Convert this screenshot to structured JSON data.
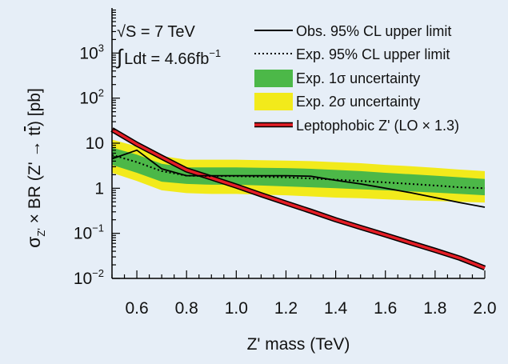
{
  "chart_data": {
    "type": "line",
    "title": "",
    "xlabel": "Z' mass (TeV)",
    "ylabel": {
      "sigma": "σ",
      "sub": "Z'",
      "rest": " × BR (Z' → t",
      "tbar": "t",
      "unit": ") [pb]"
    },
    "xlim": [
      0.5,
      2.0
    ],
    "ylim": [
      0.01,
      10000
    ],
    "yscale": "log",
    "xticks": [
      {
        "value": 0.6,
        "label": "0.6"
      },
      {
        "value": 0.8,
        "label": "0.8"
      },
      {
        "value": 1.0,
        "label": "1.0"
      },
      {
        "value": 1.2,
        "label": "1.2"
      },
      {
        "value": 1.4,
        "label": "1.4"
      },
      {
        "value": 1.6,
        "label": "1.6"
      },
      {
        "value": 1.8,
        "label": "1.8"
      },
      {
        "value": 2.0,
        "label": "2.0"
      }
    ],
    "yticks": [
      {
        "value": 0.01,
        "base": "10",
        "exp": "−2"
      },
      {
        "value": 0.1,
        "base": "10",
        "exp": "−1"
      },
      {
        "value": 1,
        "base": "1",
        "exp": ""
      },
      {
        "value": 10,
        "base": "10",
        "exp": ""
      },
      {
        "value": 100,
        "base": "10",
        "exp": "2"
      },
      {
        "value": 1000,
        "base": "10",
        "exp": "3"
      }
    ],
    "annotations": {
      "energy": "√S = 7 TeV",
      "lumi_integral": "∫",
      "lumi_text": "Ldt = 4.66fb",
      "lumi_exp": "−1"
    },
    "legend": {
      "position": "top-right",
      "entries": [
        {
          "label": "Obs. 95% CL upper limit",
          "style": "solid"
        },
        {
          "label": "Exp. 95% CL upper limit",
          "style": "dotted"
        },
        {
          "label": "Exp. 1σ uncertainty",
          "style": "band-green"
        },
        {
          "label": "Exp. 2σ uncertainty",
          "style": "band-yellow"
        },
        {
          "label": "Leptophobic Z' (LO × 1.3)",
          "style": "red"
        }
      ]
    },
    "colors": {
      "background": "#e6eef7",
      "band_1sigma": "#4cb848",
      "band_2sigma": "#f2ea1b",
      "theory": "#e41e26",
      "line": "#000000"
    },
    "x": [
      0.5,
      0.6,
      0.7,
      0.8,
      0.9,
      1.0,
      1.1,
      1.2,
      1.3,
      1.4,
      1.5,
      1.6,
      1.7,
      1.8,
      1.9,
      2.0
    ],
    "series": [
      {
        "name": "Obs. 95% CL upper limit",
        "values": [
          4.5,
          7,
          2.7,
          1.9,
          1.9,
          1.9,
          1.9,
          1.9,
          1.85,
          1.5,
          1.25,
          1.0,
          0.8,
          0.62,
          0.48,
          0.38
        ]
      },
      {
        "name": "Exp. 95% CL upper limit",
        "values": [
          5.5,
          3.8,
          2.4,
          1.9,
          1.85,
          1.85,
          1.8,
          1.75,
          1.65,
          1.55,
          1.45,
          1.35,
          1.25,
          1.15,
          1.05,
          1.0
        ]
      },
      {
        "name": "Exp. 1σ lower",
        "values": [
          3.3,
          2.2,
          1.4,
          1.25,
          1.2,
          1.2,
          1.15,
          1.1,
          1.05,
          1.0,
          0.95,
          0.9,
          0.85,
          0.8,
          0.75,
          0.7
        ]
      },
      {
        "name": "Exp. 1σ upper",
        "values": [
          8,
          5.6,
          3.5,
          2.9,
          2.9,
          2.9,
          2.85,
          2.8,
          2.7,
          2.55,
          2.4,
          2.2,
          2.05,
          1.9,
          1.75,
          1.6
        ]
      },
      {
        "name": "Exp. 2σ lower",
        "values": [
          2.2,
          1.45,
          0.9,
          0.78,
          0.75,
          0.75,
          0.72,
          0.7,
          0.66,
          0.62,
          0.6,
          0.57,
          0.54,
          0.52,
          0.5,
          0.48
        ]
      },
      {
        "name": "Exp. 2σ upper",
        "values": [
          12,
          8.5,
          5.2,
          4.3,
          4.3,
          4.3,
          4.2,
          4.1,
          4.0,
          3.8,
          3.6,
          3.3,
          3.1,
          2.85,
          2.6,
          2.4
        ]
      },
      {
        "name": "Leptophobic Z' (LO × 1.3)",
        "values": [
          20,
          9.5,
          4.9,
          2.55,
          1.7,
          1.12,
          0.72,
          0.47,
          0.31,
          0.2,
          0.135,
          0.092,
          0.062,
          0.042,
          0.028,
          0.017
        ]
      }
    ]
  }
}
